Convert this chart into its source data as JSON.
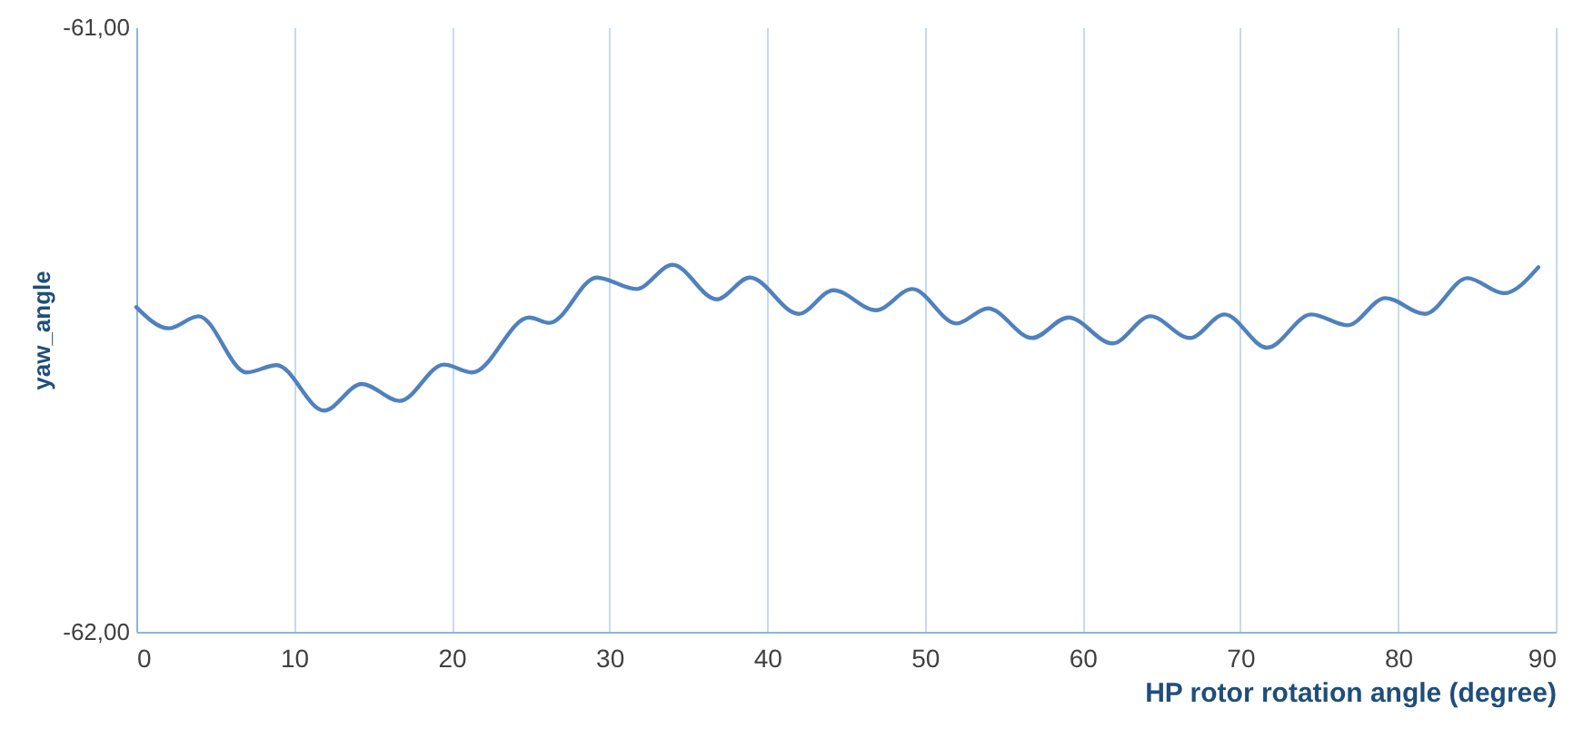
{
  "chart_data": {
    "type": "line",
    "xlabel": "HP rotor rotation angle (degree)",
    "ylabel": "yaw_angle",
    "x": [
      0,
      2.05,
      3.95,
      7.0,
      8.9,
      11.9,
      14.3,
      16.7,
      19.5,
      21.3,
      24.9,
      26.2,
      29.2,
      31.7,
      34.0,
      36.8,
      38.9,
      42.0,
      44.2,
      46.9,
      49.2,
      52.0,
      54.0,
      56.8,
      59.1,
      61.9,
      64.3,
      66.8,
      69.0,
      71.7,
      74.5,
      76.8,
      79.2,
      81.7,
      84.4,
      86.7,
      88.9
    ],
    "series": [
      {
        "color": "#4f81bd",
        "values": [
          -61.463,
          -61.498,
          -61.478,
          -61.571,
          -61.559,
          -61.634,
          -61.59,
          -61.618,
          -61.558,
          -61.571,
          -61.48,
          -61.489,
          -61.414,
          -61.433,
          -61.393,
          -61.45,
          -61.414,
          -61.474,
          -61.435,
          -61.468,
          -61.433,
          -61.49,
          -61.465,
          -61.514,
          -61.48,
          -61.523,
          -61.478,
          -61.514,
          -61.475,
          -61.53,
          -61.475,
          -61.493,
          -61.448,
          -61.474,
          -61.415,
          -61.44,
          -61.397
        ]
      }
    ],
    "xlim": [
      0,
      90
    ],
    "xticks": [
      0,
      10,
      20,
      30,
      40,
      50,
      60,
      70,
      80,
      90
    ],
    "ylim": [
      -62,
      -61
    ],
    "yticks": [
      {
        "value": -62,
        "label": "-62,00"
      },
      {
        "value": -61,
        "label": "-61,00"
      }
    ],
    "grid": "x",
    "marker": "none",
    "line_style": "solid"
  }
}
